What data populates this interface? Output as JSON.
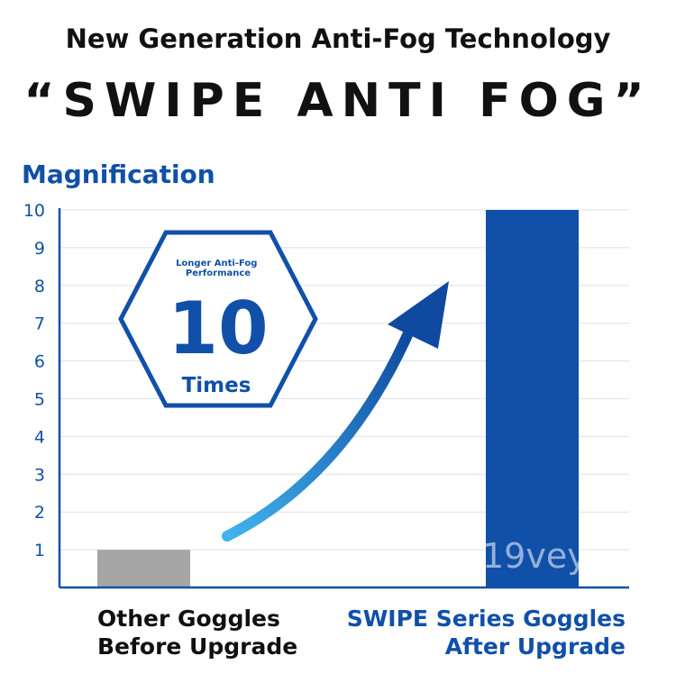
{
  "headline": {
    "subtitle": "New Generation Anti-Fog Technology",
    "title": "“SWIPE ANTI FOG”"
  },
  "badge": {
    "top_text": "Longer Anti-Fog Performance",
    "value": "10",
    "unit": "Times"
  },
  "watermark": "19vey",
  "colors": {
    "accent": "#1150a8",
    "bar_other": "#a6a6a6",
    "bar_swipe": "#1150a8",
    "grid": "#dde1e8",
    "arrow_start": "#41b3ee",
    "arrow_end": "#0f4aa0"
  },
  "chart_data": {
    "type": "bar",
    "ylabel": "Magnification",
    "xlabel": "",
    "ylim": [
      0,
      10
    ],
    "yticks": [
      1,
      2,
      3,
      4,
      5,
      6,
      7,
      8,
      9,
      10
    ],
    "grid": true,
    "categories": [
      [
        "Other Goggles",
        "Before Upgrade"
      ],
      [
        "SWIPE Series Goggles",
        "After Upgrade"
      ]
    ],
    "values": [
      1,
      10
    ]
  }
}
